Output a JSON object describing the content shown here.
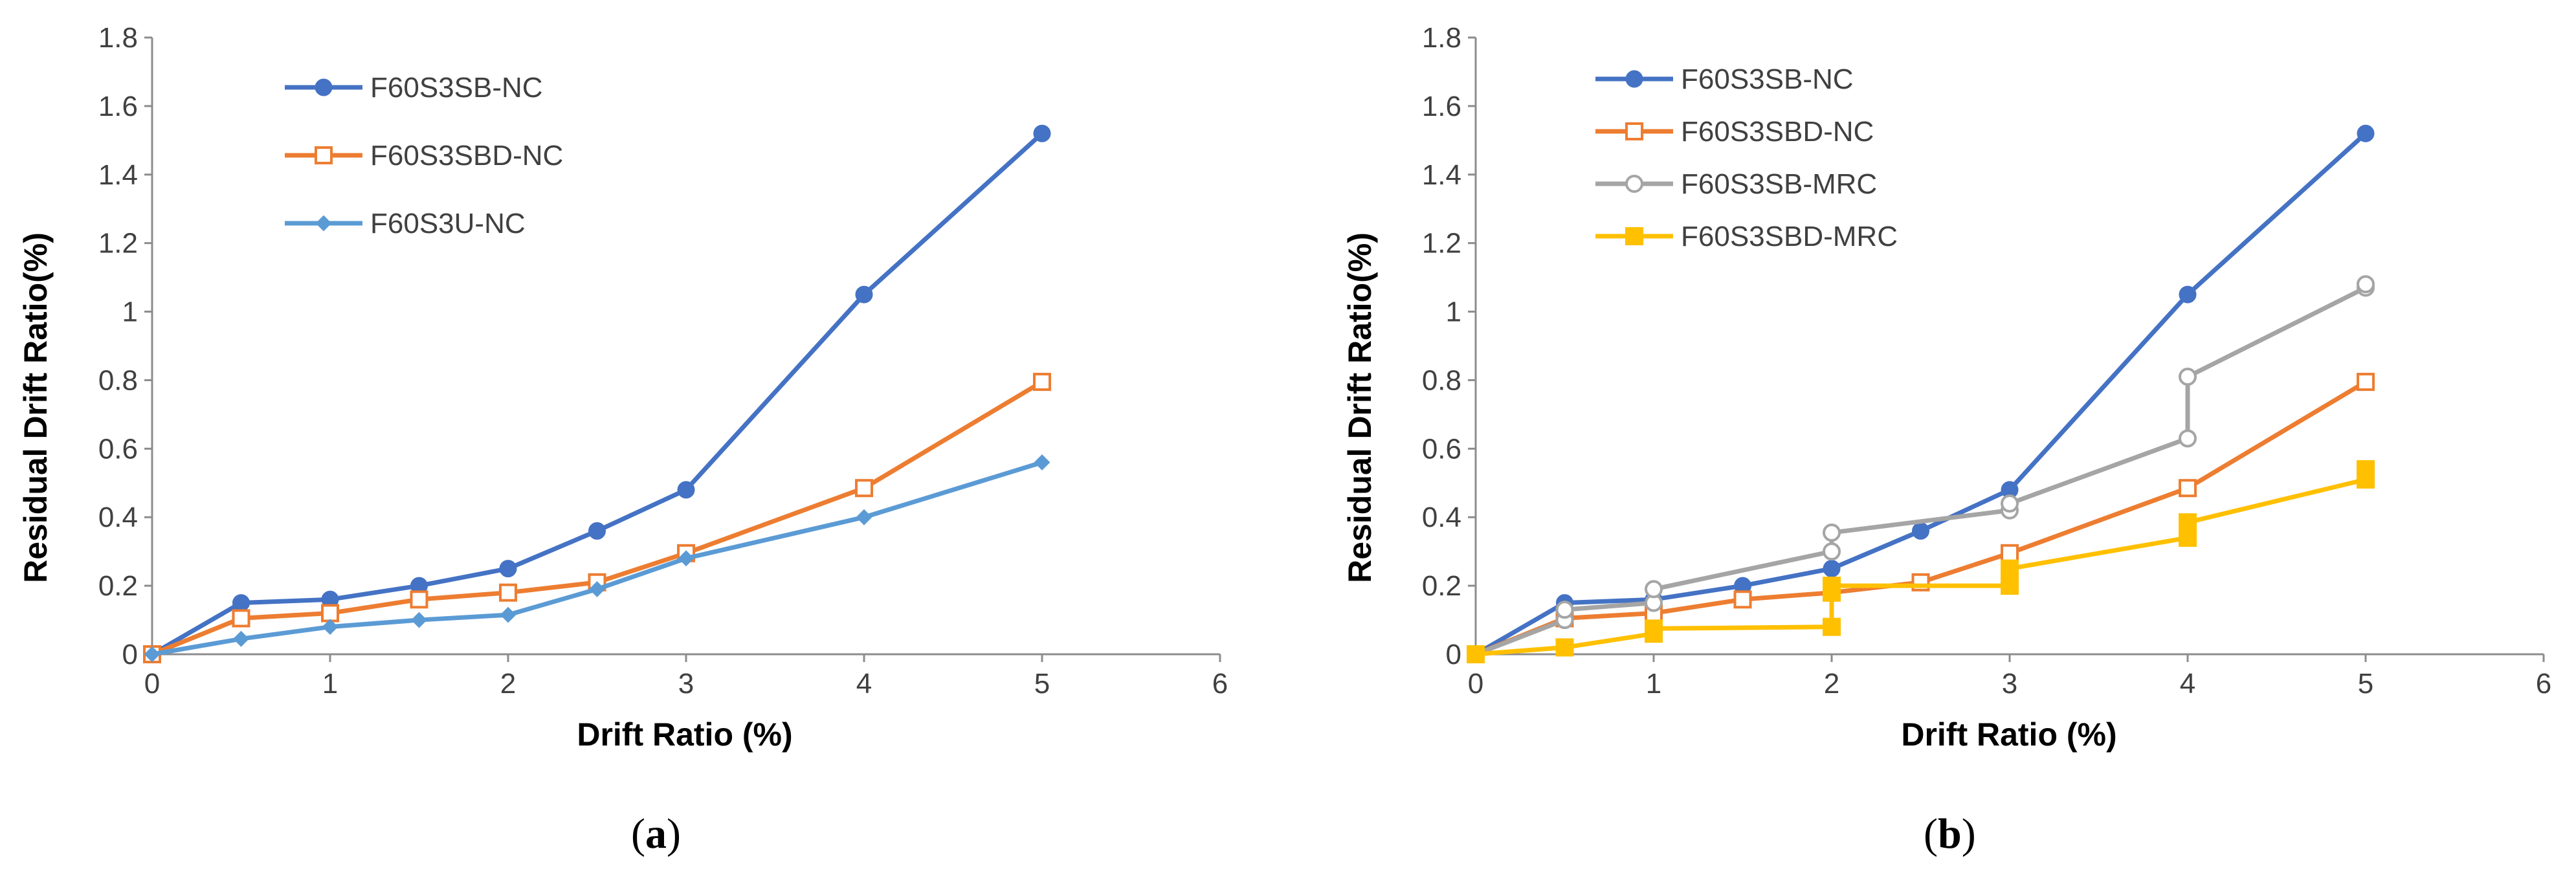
{
  "chart_data": [
    {
      "type": "line",
      "caption": "a",
      "xlabel": "Drift Ratio (%)",
      "ylabel": "Residual Drift Ratio(%)",
      "xlim": [
        0,
        6
      ],
      "ylim": [
        0,
        1.8
      ],
      "xticks": [
        "0",
        "1",
        "2",
        "3",
        "4",
        "5",
        "6"
      ],
      "yticks": [
        "0",
        "0.2",
        "0.4",
        "0.6",
        "0.8",
        "1",
        "1.2",
        "1.4",
        "1.6",
        "1.8"
      ],
      "legend_position": "top-left",
      "series": [
        {
          "name": "F60S3SB-NC",
          "color": "#4472C4",
          "marker": "circle-filled",
          "points": [
            [
              0,
              0
            ],
            [
              0.5,
              0.15
            ],
            [
              1,
              0.16
            ],
            [
              1.5,
              0.2
            ],
            [
              2,
              0.25
            ],
            [
              2.5,
              0.36
            ],
            [
              3,
              0.48
            ],
            [
              4,
              1.05
            ],
            [
              5,
              1.52
            ]
          ]
        },
        {
          "name": "F60S3SBD-NC",
          "color": "#ED7D31",
          "marker": "square-open",
          "points": [
            [
              0,
              0
            ],
            [
              0.5,
              0.105
            ],
            [
              1,
              0.12
            ],
            [
              1.5,
              0.16
            ],
            [
              2,
              0.18
            ],
            [
              2.5,
              0.21
            ],
            [
              3,
              0.295
            ],
            [
              4,
              0.485
            ],
            [
              5,
              0.795
            ]
          ]
        },
        {
          "name": "F60S3U-NC",
          "color": "#5B9BD5",
          "marker": "diamond-filled",
          "points": [
            [
              0,
              0
            ],
            [
              0.5,
              0.045
            ],
            [
              1,
              0.08
            ],
            [
              1.5,
              0.1
            ],
            [
              2,
              0.115
            ],
            [
              2.5,
              0.19
            ],
            [
              3,
              0.28
            ],
            [
              4,
              0.4
            ],
            [
              5,
              0.56
            ]
          ]
        }
      ]
    },
    {
      "type": "line",
      "caption": "b",
      "xlabel": "Drift Ratio (%)",
      "ylabel": "Residual Drift Ratio(%)",
      "xlim": [
        0,
        6
      ],
      "ylim": [
        0,
        1.8
      ],
      "xticks": [
        "0",
        "1",
        "2",
        "3",
        "4",
        "5",
        "6"
      ],
      "yticks": [
        "0",
        "0.2",
        "0.4",
        "0.6",
        "0.8",
        "1",
        "1.2",
        "1.4",
        "1.6",
        "1.8"
      ],
      "legend_position": "top-left",
      "series": [
        {
          "name": "F60S3SB-NC",
          "color": "#4472C4",
          "marker": "circle-filled",
          "points": [
            [
              0,
              0
            ],
            [
              0.5,
              0.15
            ],
            [
              1,
              0.16
            ],
            [
              1.5,
              0.2
            ],
            [
              2,
              0.25
            ],
            [
              2.5,
              0.36
            ],
            [
              3,
              0.48
            ],
            [
              4,
              1.05
            ],
            [
              5,
              1.52
            ]
          ]
        },
        {
          "name": "F60S3SBD-NC",
          "color": "#ED7D31",
          "marker": "square-open",
          "points": [
            [
              0,
              0
            ],
            [
              0.5,
              0.105
            ],
            [
              1,
              0.12
            ],
            [
              1.5,
              0.16
            ],
            [
              2,
              0.18
            ],
            [
              2.5,
              0.21
            ],
            [
              3,
              0.295
            ],
            [
              4,
              0.485
            ],
            [
              5,
              0.795
            ]
          ]
        },
        {
          "name": "F60S3SB-MRC",
          "color": "#A5A5A5",
          "marker": "circle-open",
          "points": [
            [
              0,
              0
            ],
            [
              0.5,
              0.1
            ],
            [
              0.5,
              0.13
            ],
            [
              1,
              0.15
            ],
            [
              1,
              0.19
            ],
            [
              2,
              0.3
            ],
            [
              2,
              0.355
            ],
            [
              3,
              0.42
            ],
            [
              3,
              0.44
            ],
            [
              4,
              0.63
            ],
            [
              4,
              0.81
            ],
            [
              5,
              1.07
            ],
            [
              5,
              1.08
            ]
          ]
        },
        {
          "name": "F60S3SBD-MRC",
          "color": "#FFC000",
          "marker": "square-filled",
          "points": [
            [
              0,
              0
            ],
            [
              0.5,
              0.02
            ],
            [
              1,
              0.06
            ],
            [
              1,
              0.075
            ],
            [
              2,
              0.08
            ],
            [
              2,
              0.18
            ],
            [
              2,
              0.2
            ],
            [
              3,
              0.2
            ],
            [
              3,
              0.25
            ],
            [
              4,
              0.34
            ],
            [
              4,
              0.385
            ],
            [
              5,
              0.51
            ],
            [
              5,
              0.54
            ]
          ]
        }
      ]
    }
  ]
}
